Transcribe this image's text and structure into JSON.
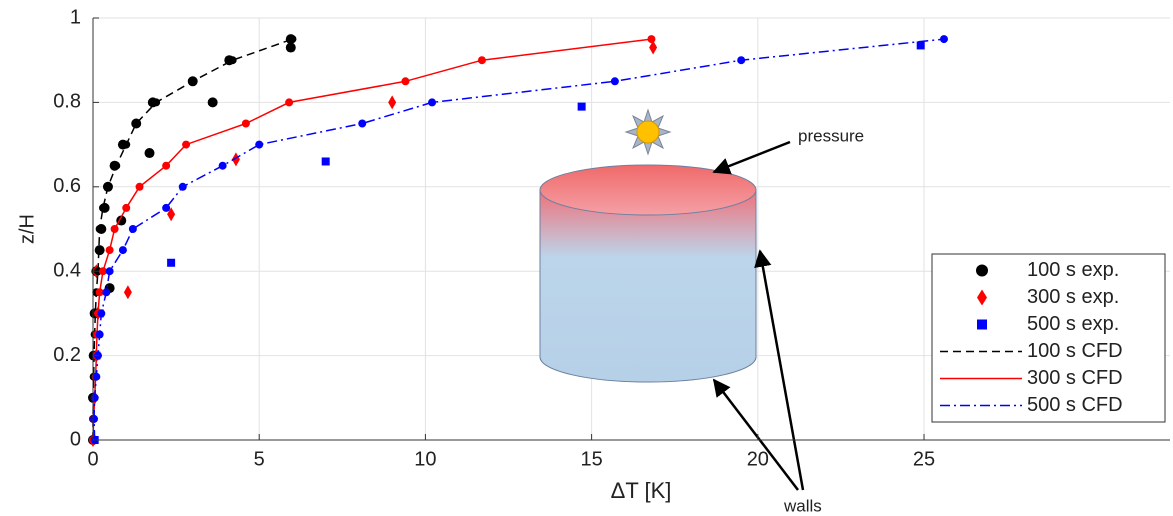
{
  "chart_data": {
    "type": "line",
    "x_label": "ΔT [K]",
    "y_label": "z/H",
    "xlim": [
      0,
      32.4
    ],
    "ylim": [
      0,
      1
    ],
    "xticks": [
      0,
      5,
      10,
      15,
      20,
      25
    ],
    "yticks": [
      0,
      0.2,
      0.4,
      0.6,
      0.8,
      1
    ],
    "grid": true,
    "legend": "lower right",
    "annotations": [
      "pressure",
      "walls"
    ],
    "series": [
      {
        "name": "100 s exp.",
        "color": "#000000",
        "marker": "circle",
        "x": [
          0,
          0,
          0.02,
          0.05,
          0.1,
          0.2,
          0.25,
          0.35,
          0.45,
          0.65,
          0.9,
          1.3,
          1.8,
          3.0,
          4.1,
          5.95,
          5.95,
          3.6,
          1.7,
          0.85,
          0.5
        ],
        "values": [
          0,
          0.1,
          0.2,
          0.3,
          0.4,
          0.45,
          0.5,
          0.55,
          0.6,
          0.65,
          0.7,
          0.75,
          0.8,
          0.85,
          0.9,
          0.95,
          0.93,
          0.8,
          0.68,
          0.52,
          0.36
        ]
      },
      {
        "name": "300 s exp.",
        "color": "#ff0000",
        "marker": "diamond",
        "x": [
          0,
          0.05,
          0.1,
          0.15,
          0.1,
          1.05,
          2.35,
          4.3,
          9.0,
          16.85
        ],
        "values": [
          0,
          0.1,
          0.2,
          0.3,
          0.4,
          0.35,
          0.535,
          0.665,
          0.8,
          0.93
        ]
      },
      {
        "name": "500 s exp.",
        "color": "#0000ff",
        "marker": "square",
        "x": [
          0.05,
          0.1,
          0.2,
          2.35,
          7.0,
          14.7,
          24.9
        ],
        "values": [
          0,
          0.2,
          0.3,
          0.42,
          0.66,
          0.79,
          0.935
        ]
      },
      {
        "name": "100 s CFD",
        "color": "#000000",
        "dash": "8,5",
        "x": [
          0,
          0,
          0.01,
          0.02,
          0.03,
          0.05,
          0.07,
          0.1,
          0.15,
          0.2,
          0.3,
          0.45,
          0.7,
          1.0,
          1.3,
          1.9,
          3.0,
          4.2,
          6.0
        ],
        "values": [
          0,
          0.05,
          0.1,
          0.15,
          0.2,
          0.25,
          0.3,
          0.35,
          0.4,
          0.5,
          0.55,
          0.6,
          0.65,
          0.7,
          0.75,
          0.8,
          0.85,
          0.9,
          0.95
        ]
      },
      {
        "name": "300 s CFD",
        "color": "#ff0000",
        "dash": "none",
        "x": [
          0,
          0.02,
          0.05,
          0.08,
          0.1,
          0.12,
          0.15,
          0.2,
          0.3,
          0.5,
          0.65,
          1.0,
          1.4,
          2.2,
          2.8,
          4.6,
          5.9,
          9.4,
          11.7,
          16.8
        ],
        "values": [
          0,
          0.05,
          0.1,
          0.15,
          0.2,
          0.25,
          0.3,
          0.35,
          0.4,
          0.45,
          0.5,
          0.55,
          0.6,
          0.65,
          0.7,
          0.75,
          0.8,
          0.85,
          0.9,
          0.95
        ]
      },
      {
        "name": "500 s CFD",
        "color": "#0000ff",
        "dash": "10,4,2,4",
        "x": [
          0.05,
          0.03,
          0.05,
          0.1,
          0.15,
          0.2,
          0.25,
          0.4,
          0.5,
          0.9,
          1.2,
          2.2,
          2.7,
          3.9,
          5.0,
          8.1,
          10.2,
          15.7,
          19.5,
          25.6
        ],
        "values": [
          0,
          0.05,
          0.1,
          0.15,
          0.2,
          0.25,
          0.3,
          0.35,
          0.4,
          0.45,
          0.5,
          0.55,
          0.6,
          0.65,
          0.7,
          0.75,
          0.8,
          0.85,
          0.9,
          0.95
        ]
      }
    ]
  }
}
